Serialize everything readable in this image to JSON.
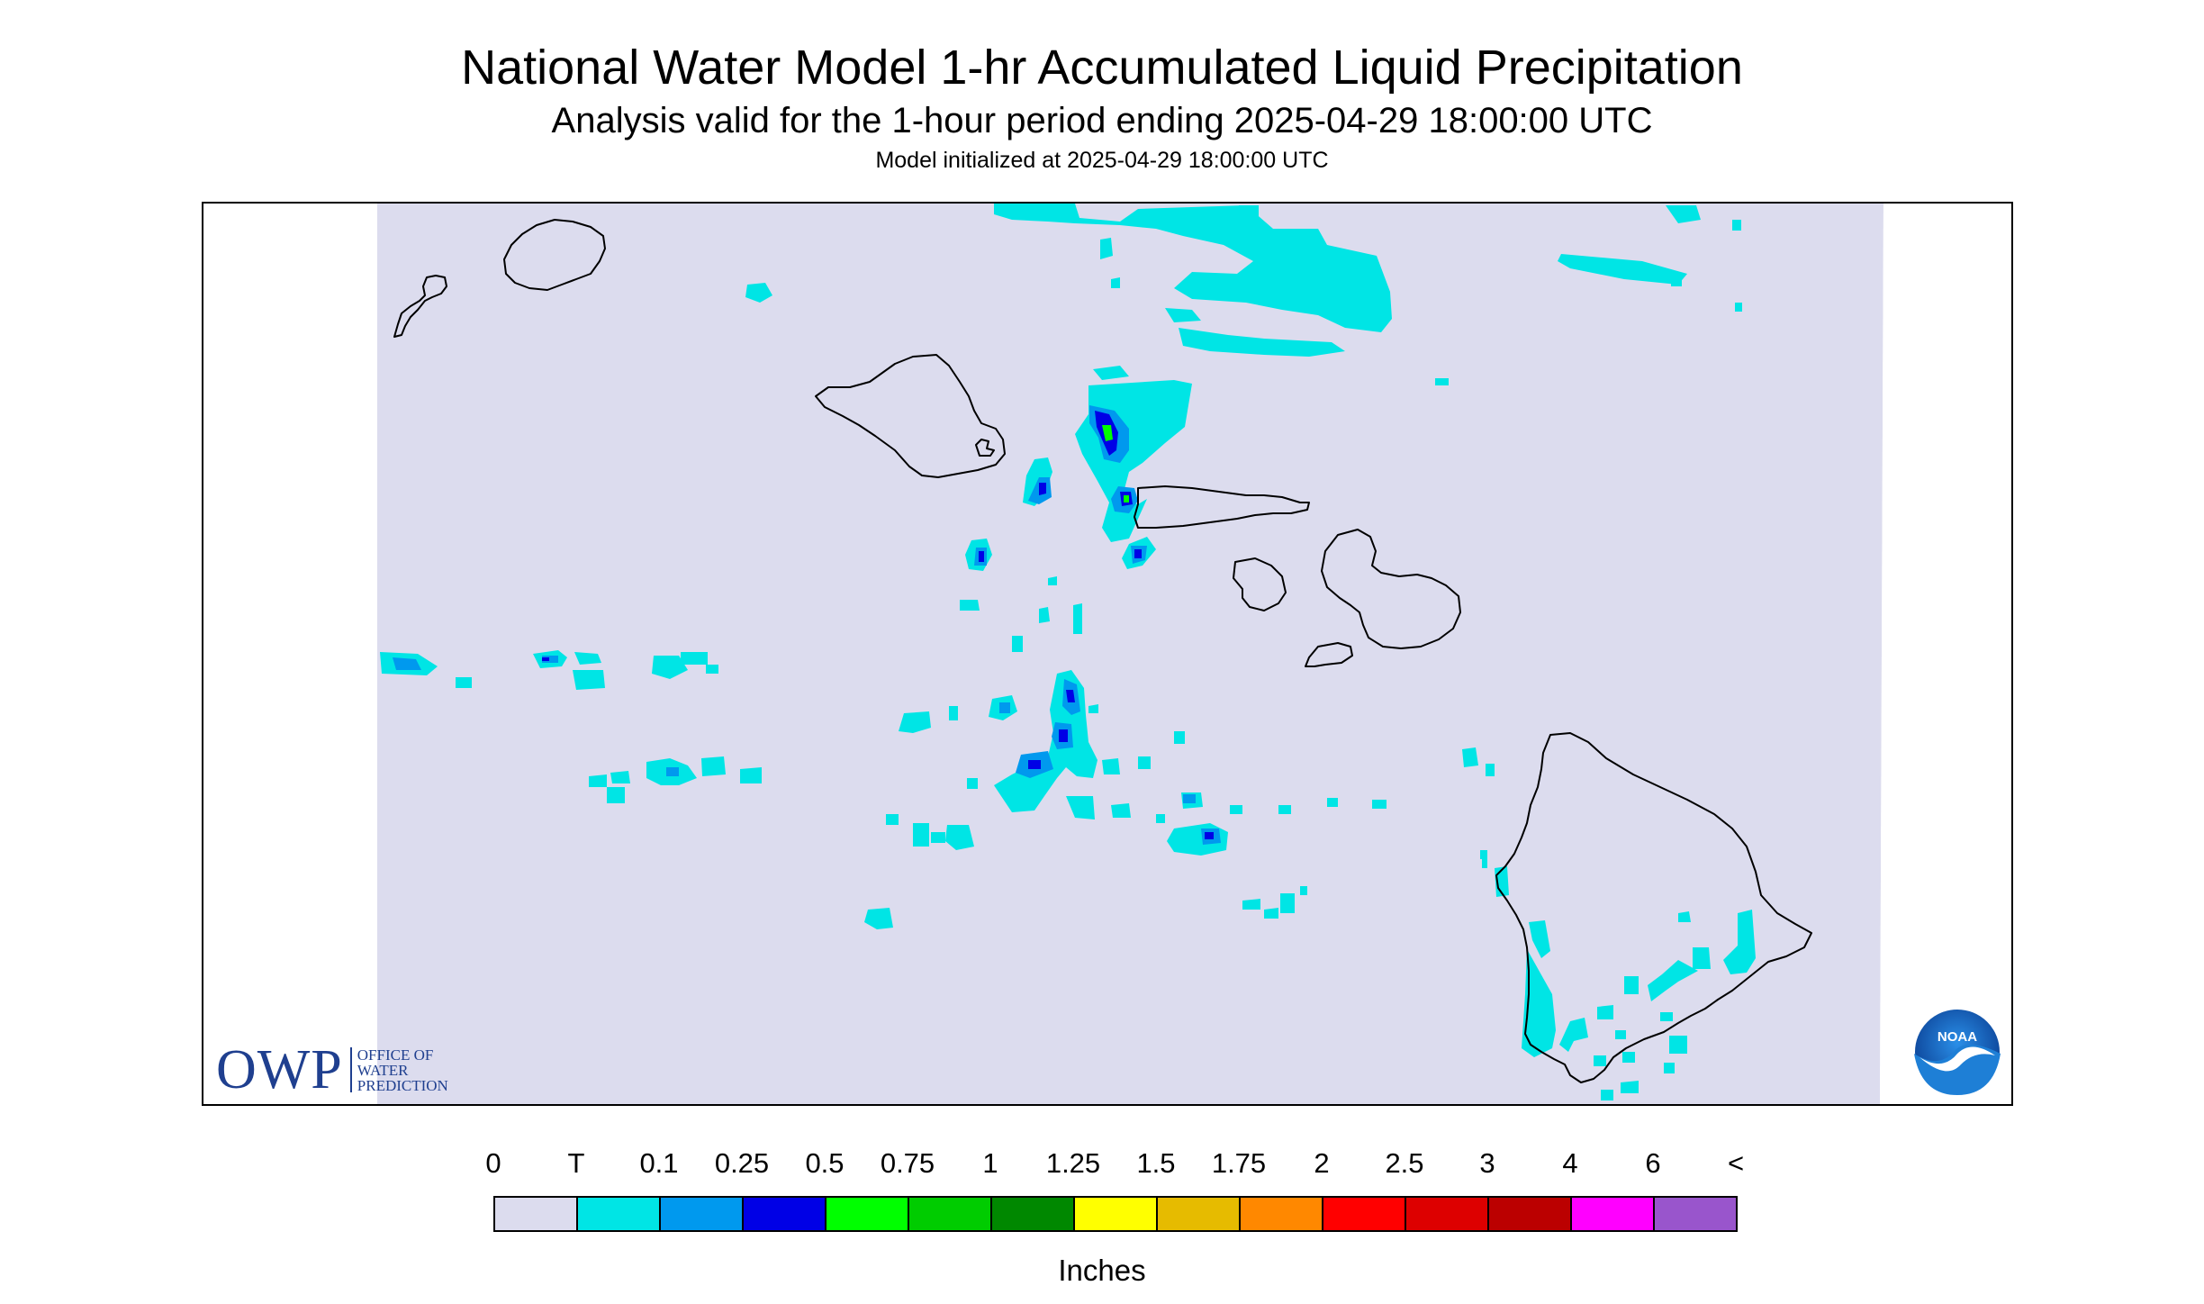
{
  "header": {
    "title": "National Water Model 1-hr Accumulated Liquid Precipitation",
    "subtitle": "Analysis valid for the 1-hour period ending 2025-04-29 18:00:00 UTC",
    "init": "Model initialized at 2025-04-29 18:00:00 UTC"
  },
  "colors": {
    "nodata": "#ffffff",
    "zero": "#dcdcee",
    "coast": "#000000",
    "frame": "#000000"
  },
  "legend": {
    "ticks": [
      "0",
      "T",
      "0.1",
      "0.25",
      "0.5",
      "0.75",
      "1",
      "1.25",
      "1.5",
      "1.75",
      "2",
      "2.5",
      "3",
      "4",
      "6",
      "<"
    ],
    "bins": [
      {
        "color": "#dcdcee"
      },
      {
        "color": "#00e5e5"
      },
      {
        "color": "#0099ee"
      },
      {
        "color": "#0000e6"
      },
      {
        "color": "#00ff00"
      },
      {
        "color": "#00cc00"
      },
      {
        "color": "#008800"
      },
      {
        "color": "#ffff00"
      },
      {
        "color": "#e6bb00"
      },
      {
        "color": "#ff8800"
      },
      {
        "color": "#ff0000"
      },
      {
        "color": "#dd0000"
      },
      {
        "color": "#bb0000"
      },
      {
        "color": "#ff00ff"
      },
      {
        "color": "#9955cc"
      }
    ],
    "units": "Inches"
  },
  "logos": {
    "owp_mark": "OWP",
    "owp_line1": "OFFICE OF",
    "owp_line2": "WATER",
    "owp_line3": "PREDICTION",
    "noaa": "NOAA"
  },
  "islands": [
    "Niihau",
    "Kauai",
    "Oahu",
    "Molokai",
    "Lanai",
    "Maui",
    "Kahoolawe",
    "Hawaii"
  ]
}
